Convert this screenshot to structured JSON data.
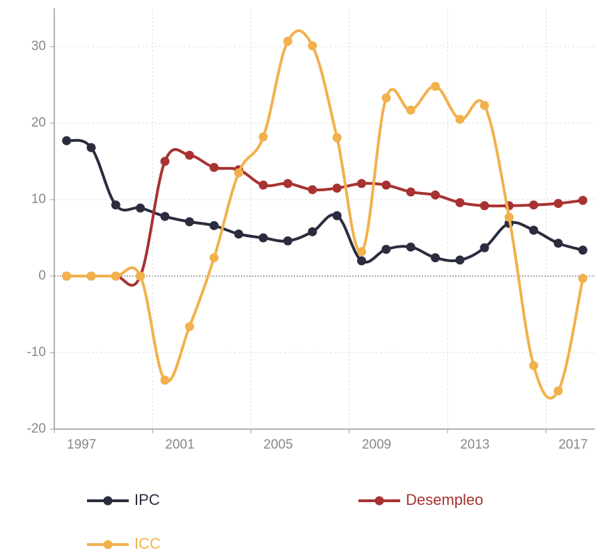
{
  "chart_data": {
    "type": "line",
    "x": [
      1997.5,
      1998.5,
      1999.5,
      2000.5,
      2001.5,
      2002.5,
      2003.5,
      2004.5,
      2005.5,
      2006.5,
      2007.5,
      2008.5,
      2009.5,
      2010.5,
      2011.5,
      2012.5,
      2013.5,
      2014.5,
      2015.5,
      2016.5,
      2017.5,
      2018.5
    ],
    "series": [
      {
        "name": "IPC",
        "color": "#2b2d3e",
        "values": [
          17.7,
          16.8,
          9.3,
          8.9,
          7.8,
          7.1,
          6.6,
          5.5,
          5.0,
          4.6,
          5.8,
          7.9,
          2.0,
          3.5,
          3.8,
          2.4,
          2.1,
          3.7,
          6.9,
          6.0,
          4.3,
          3.4
        ]
      },
      {
        "name": "Desempleo",
        "color": "#a83232",
        "values": [
          0,
          0,
          0,
          0,
          15.0,
          15.8,
          14.2,
          13.9,
          11.9,
          12.1,
          11.3,
          11.5,
          12.1,
          11.9,
          11.0,
          10.6,
          9.6,
          9.2,
          9.2,
          9.3,
          9.5,
          9.9
        ]
      },
      {
        "name": "ICC",
        "color": "#f2b14c",
        "values": [
          0,
          0,
          0,
          0,
          -13.6,
          -6.6,
          2.4,
          13.5,
          18.2,
          30.7,
          30.1,
          18.1,
          3.2,
          23.3,
          21.7,
          24.8,
          20.5,
          22.3,
          7.7,
          -11.7,
          -15.0,
          -0.3
        ]
      }
    ],
    "xlim": [
      1997,
      2019
    ],
    "xticks": [
      1997,
      2001,
      2005,
      2009,
      2013,
      2017
    ],
    "ylim": [
      -20,
      35
    ],
    "yticks": [
      -20,
      -10,
      0,
      10,
      20,
      30
    ],
    "grid": true,
    "legend": "bottom"
  }
}
